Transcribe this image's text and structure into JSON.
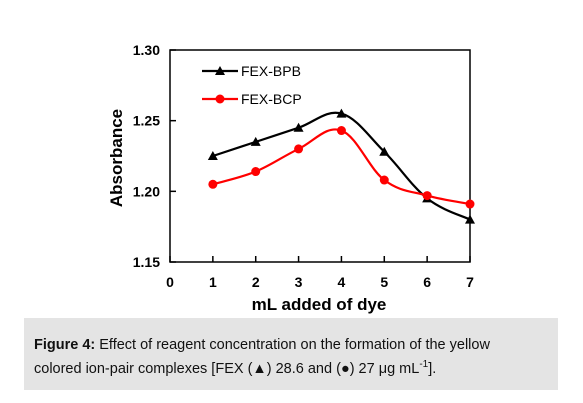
{
  "chart_data": {
    "type": "line",
    "xlabel": "mL added of dye",
    "ylabel": "Absorbance",
    "xlim": [
      0,
      7
    ],
    "ylim": [
      1.15,
      1.3
    ],
    "x_ticks": [
      "0",
      "1",
      "2",
      "3",
      "4",
      "5",
      "6",
      "7"
    ],
    "y_ticks": [
      "1.15",
      "1.20",
      "1.25",
      "1.30"
    ],
    "grid": false,
    "legend_position": "top-left",
    "series": [
      {
        "name": "FEX-BPB",
        "color": "#000000",
        "marker": "triangle",
        "x": [
          1,
          2,
          3,
          4,
          5,
          6,
          7
        ],
        "y": [
          1.225,
          1.235,
          1.245,
          1.255,
          1.228,
          1.195,
          1.18
        ]
      },
      {
        "name": "FEX-BCP",
        "color": "#ff0000",
        "marker": "circle",
        "x": [
          1,
          2,
          3,
          4,
          5,
          6,
          7
        ],
        "y": [
          1.205,
          1.214,
          1.23,
          1.243,
          1.208,
          1.197,
          1.191
        ]
      }
    ]
  },
  "caption": {
    "label": "Figure 4:",
    "text_line1": " Effect of reagent concentration on the formation of the yellow",
    "text_line2_a": "colored ion-pair complexes [FEX (",
    "triangle_glyph": "▲",
    "text_line2_b": ") 28.6 and (",
    "dot_glyph": "●",
    "text_line2_c": ") 27 μg mL",
    "superscript": "-1",
    "text_line2_d": "]."
  }
}
